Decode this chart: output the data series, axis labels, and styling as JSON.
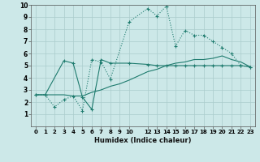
{
  "bg_color": "#cce8e8",
  "line_color": "#1e7b6e",
  "grid_color": "#aacccc",
  "xlabel": "Humidex (Indice chaleur)",
  "xlim": [
    -0.5,
    23.5
  ],
  "ylim": [
    0,
    10
  ],
  "xticks": [
    0,
    1,
    2,
    3,
    4,
    5,
    6,
    7,
    8,
    9,
    10,
    12,
    13,
    14,
    15,
    16,
    17,
    18,
    19,
    20,
    21,
    22,
    23
  ],
  "yticks": [
    1,
    2,
    3,
    4,
    5,
    6,
    7,
    8,
    9,
    10
  ],
  "series1_x": [
    0,
    1,
    2,
    3,
    4,
    5,
    6,
    7,
    8,
    10,
    12,
    13,
    14,
    15,
    16,
    17,
    18,
    19,
    20,
    21,
    22,
    23
  ],
  "series1_y": [
    2.6,
    2.6,
    1.6,
    2.2,
    2.5,
    1.3,
    5.5,
    5.3,
    3.9,
    8.6,
    9.7,
    9.1,
    9.9,
    6.6,
    7.9,
    7.5,
    7.5,
    7.0,
    6.5,
    6.0,
    5.0,
    4.9
  ],
  "series2_x": [
    0,
    1,
    3,
    4,
    5,
    6,
    7,
    8,
    10,
    12,
    13,
    14,
    15,
    16,
    17,
    18,
    19,
    20,
    21,
    22,
    23
  ],
  "series2_y": [
    2.6,
    2.6,
    5.4,
    5.2,
    2.4,
    1.4,
    5.5,
    5.2,
    5.2,
    5.1,
    5.0,
    5.0,
    5.0,
    5.0,
    5.0,
    5.0,
    5.0,
    5.0,
    5.0,
    5.0,
    4.9
  ],
  "series3_x": [
    0,
    1,
    2,
    3,
    4,
    5,
    6,
    7,
    8,
    9,
    10,
    12,
    13,
    14,
    15,
    16,
    17,
    18,
    19,
    20,
    21,
    22,
    23
  ],
  "series3_y": [
    2.6,
    2.6,
    2.6,
    2.6,
    2.5,
    2.5,
    2.8,
    3.0,
    3.3,
    3.5,
    3.8,
    4.5,
    4.7,
    5.0,
    5.2,
    5.3,
    5.5,
    5.5,
    5.6,
    5.8,
    5.5,
    5.3,
    4.9
  ]
}
